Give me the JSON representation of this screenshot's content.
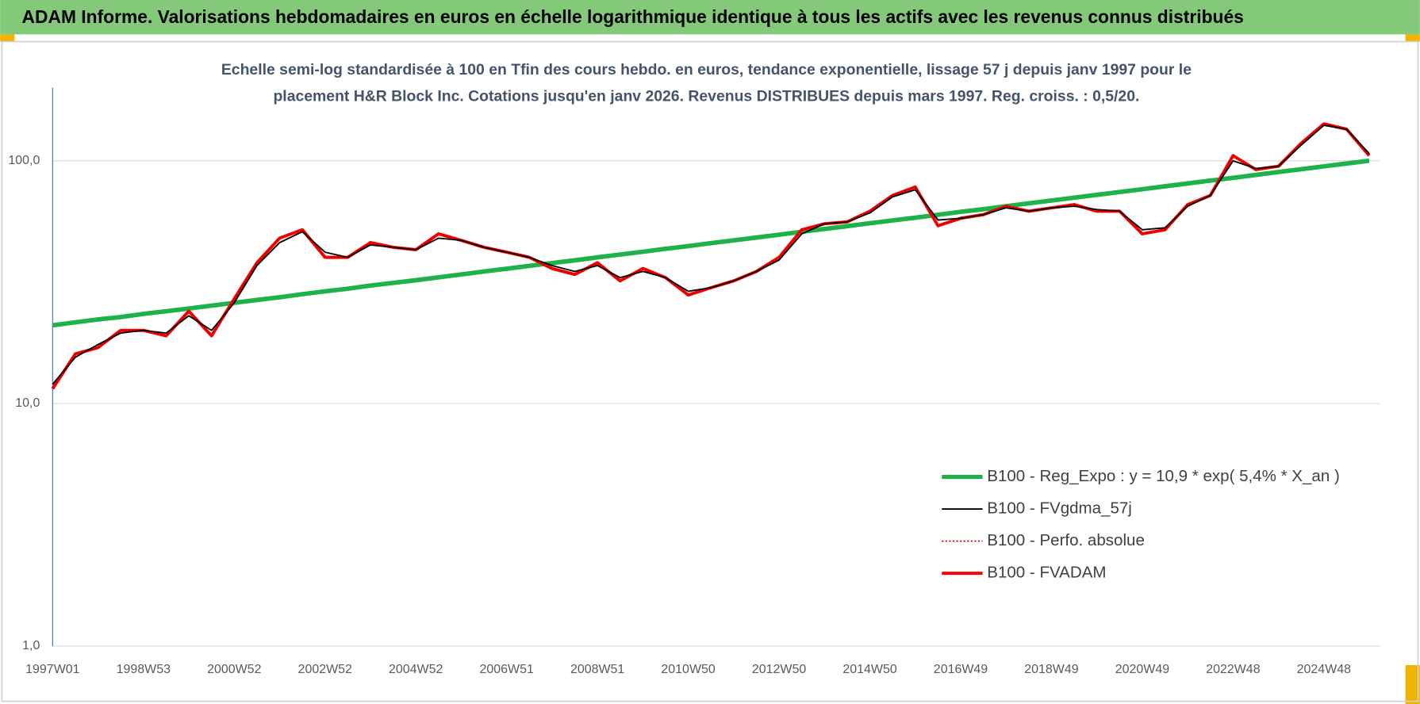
{
  "chart_data": {
    "type": "line",
    "title": "ADAM Informe. Valorisations hebdomadaires en euros en échelle logarithmique identique à tous les actifs avec les revenus connus distribués",
    "subtitle": [
      "Echelle semi-log standardisée à 100 en Tfin des cours hebdo. en euros, tendance exponentielle, lissage 57 j depuis janv 1997 pour le",
      "placement H&R Block Inc. Cotations jusqu'en janv 2026. Revenus DISTRIBUES depuis mars 1997. Reg. croiss. : 0,5/20."
    ],
    "log_scale": true,
    "grid": true,
    "legend_position": "right",
    "ylim": [
      1,
      200
    ],
    "yticks": [
      {
        "value": 1,
        "label": "1,0"
      },
      {
        "value": 10,
        "label": "10,0"
      },
      {
        "value": 100,
        "label": "100,0"
      }
    ],
    "categories": [
      "1997W01",
      null,
      null,
      null,
      "1998W53",
      null,
      null,
      null,
      "2000W52",
      null,
      null,
      null,
      "2002W52",
      null,
      null,
      null,
      "2004W52",
      null,
      null,
      null,
      "2006W51",
      null,
      null,
      null,
      "2008W51",
      null,
      null,
      null,
      "2010W50",
      null,
      null,
      null,
      "2012W50",
      null,
      null,
      null,
      "2014W50",
      null,
      null,
      null,
      "2016W49",
      null,
      null,
      null,
      "2018W49",
      null,
      null,
      null,
      "2020W49",
      null,
      null,
      null,
      "2022W48",
      null,
      null,
      null,
      "2024W48",
      null,
      null
    ],
    "series": [
      {
        "name": "B100 - Reg_Expo : y = 10,9 * exp( 5,4% *  X_an )",
        "color": "#1fb24a",
        "width": 5,
        "dash": false,
        "values": [
          21.0,
          21.6,
          22.2,
          22.7,
          23.4,
          24.0,
          24.6,
          25.3,
          26.0,
          26.7,
          27.4,
          28.2,
          29.0,
          29.7,
          30.6,
          31.4,
          32.2,
          33.1,
          34.0,
          35.0,
          35.9,
          36.9,
          37.9,
          38.9,
          40.0,
          41.1,
          42.2,
          43.4,
          44.5,
          45.8,
          47.0,
          48.3,
          49.6,
          51.0,
          52.4,
          53.8,
          55.3,
          56.8,
          58.3,
          59.9,
          61.6,
          63.2,
          65.0,
          66.8,
          68.6,
          70.5,
          72.4,
          74.4,
          76.4,
          78.5,
          80.7,
          82.9,
          85.1,
          87.5,
          89.9,
          92.3,
          94.9,
          97.5,
          100.1
        ]
      },
      {
        "name": "B100 - FVgdma_57j",
        "color": "#000000",
        "width": 1.6,
        "dash": false,
        "values": [
          12,
          15.5,
          17.5,
          19.5,
          20,
          19.5,
          23,
          20,
          26,
          37,
          46,
          51,
          42,
          40,
          45,
          44,
          43,
          48,
          47,
          44,
          42,
          40,
          37,
          35,
          37,
          33,
          35,
          33,
          29,
          30,
          32,
          35,
          39,
          50,
          55,
          56,
          61,
          71,
          76,
          57,
          58,
          60,
          64,
          62,
          64,
          65,
          63,
          62,
          52,
          53,
          65,
          72,
          100,
          93,
          95,
          116,
          140,
          135,
          107
        ]
      },
      {
        "name": "B100 - Perfo. absolue",
        "color": "#c00000",
        "width": 1.5,
        "dash": true,
        "values": [
          11.5,
          16,
          17,
          20,
          20,
          19,
          24,
          19,
          27,
          38,
          48,
          52,
          40,
          40,
          46,
          44,
          43,
          50,
          47,
          44,
          42,
          40,
          36,
          34,
          38,
          32,
          36,
          33,
          28,
          30,
          32,
          35,
          40,
          52,
          55,
          56,
          62,
          72,
          78,
          54,
          58,
          60,
          65,
          62,
          64,
          66,
          62,
          62,
          50,
          52,
          66,
          72,
          105,
          92,
          95,
          118,
          142,
          135,
          105
        ]
      },
      {
        "name": "B100 - FVADAM",
        "color": "#ff0000",
        "width": 3.5,
        "dash": false,
        "values": [
          11.5,
          16,
          17,
          20,
          20,
          19,
          24,
          19,
          27,
          38,
          48,
          52,
          40,
          40,
          46,
          44,
          43,
          50,
          47,
          44,
          42,
          40,
          36,
          34,
          38,
          32,
          36,
          33,
          28,
          30,
          32,
          35,
          40,
          52,
          55,
          56,
          62,
          72,
          78,
          54,
          58,
          60,
          65,
          62,
          64,
          66,
          62,
          62,
          50,
          52,
          66,
          72,
          105,
          92,
          95,
          118,
          142,
          135,
          105
        ]
      }
    ]
  }
}
